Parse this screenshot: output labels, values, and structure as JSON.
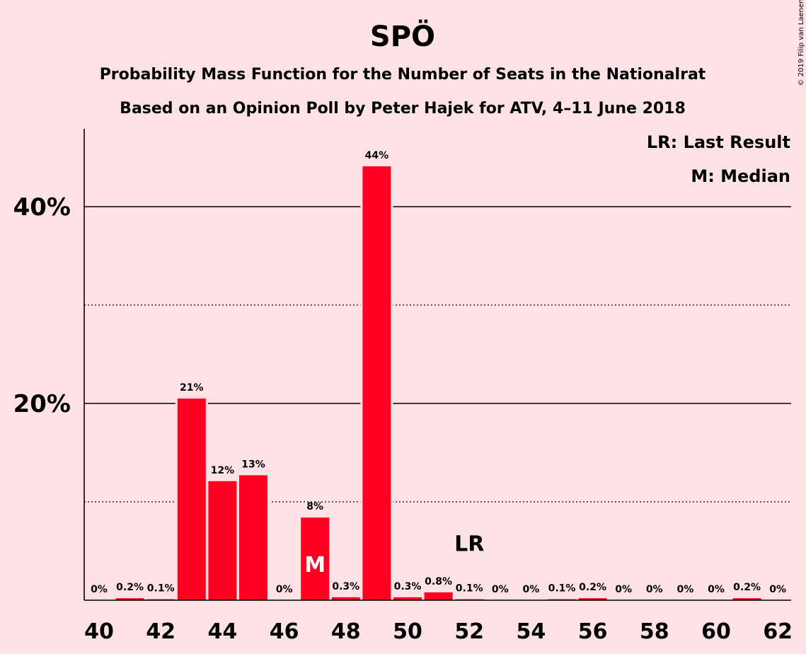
{
  "chart_data": {
    "type": "bar",
    "title": "SPÖ",
    "subtitle_lines": [
      "Probability Mass Function for the Number of Seats in the Nationalrat",
      "Based on an Opinion Poll by Peter Hajek for ATV, 4–11 June 2018"
    ],
    "legend": [
      "LR: Last Result",
      "M: Median"
    ],
    "legend_position": "top-right",
    "copyright": "© 2019 Filip van Laenen",
    "x": [
      40,
      41,
      42,
      43,
      44,
      45,
      46,
      47,
      48,
      49,
      50,
      51,
      52,
      53,
      54,
      55,
      56,
      57,
      58,
      59,
      60,
      61,
      62
    ],
    "x_ticks": [
      "40",
      "42",
      "44",
      "46",
      "48",
      "50",
      "52",
      "54",
      "56",
      "58",
      "60",
      "62"
    ],
    "values": [
      0,
      0.2,
      0.1,
      20.5,
      12.1,
      12.7,
      0,
      8.4,
      0.3,
      44.1,
      0.3,
      0.8,
      0.1,
      0,
      0,
      0.1,
      0.2,
      0,
      0,
      0,
      0,
      0.2,
      0
    ],
    "labels": [
      "0%",
      "0.2%",
      "0.1%",
      "21%",
      "12%",
      "13%",
      "0%",
      "8%",
      "0.3%",
      "44%",
      "0.3%",
      "0.8%",
      "0.1%",
      "0%",
      "0%",
      "0.1%",
      "0.2%",
      "0%",
      "0%",
      "0%",
      "0%",
      "0.2%",
      "0%"
    ],
    "y_ticks": [
      {
        "value": 20,
        "label": "20%"
      },
      {
        "value": 40,
        "label": "40%"
      }
    ],
    "minor_gridlines": [
      10,
      30
    ],
    "ylim": [
      0,
      48
    ],
    "median_seat": 47,
    "median_label": "M",
    "last_result_seat": 52,
    "last_result_label": "LR",
    "bar_color": "#ff0022"
  }
}
